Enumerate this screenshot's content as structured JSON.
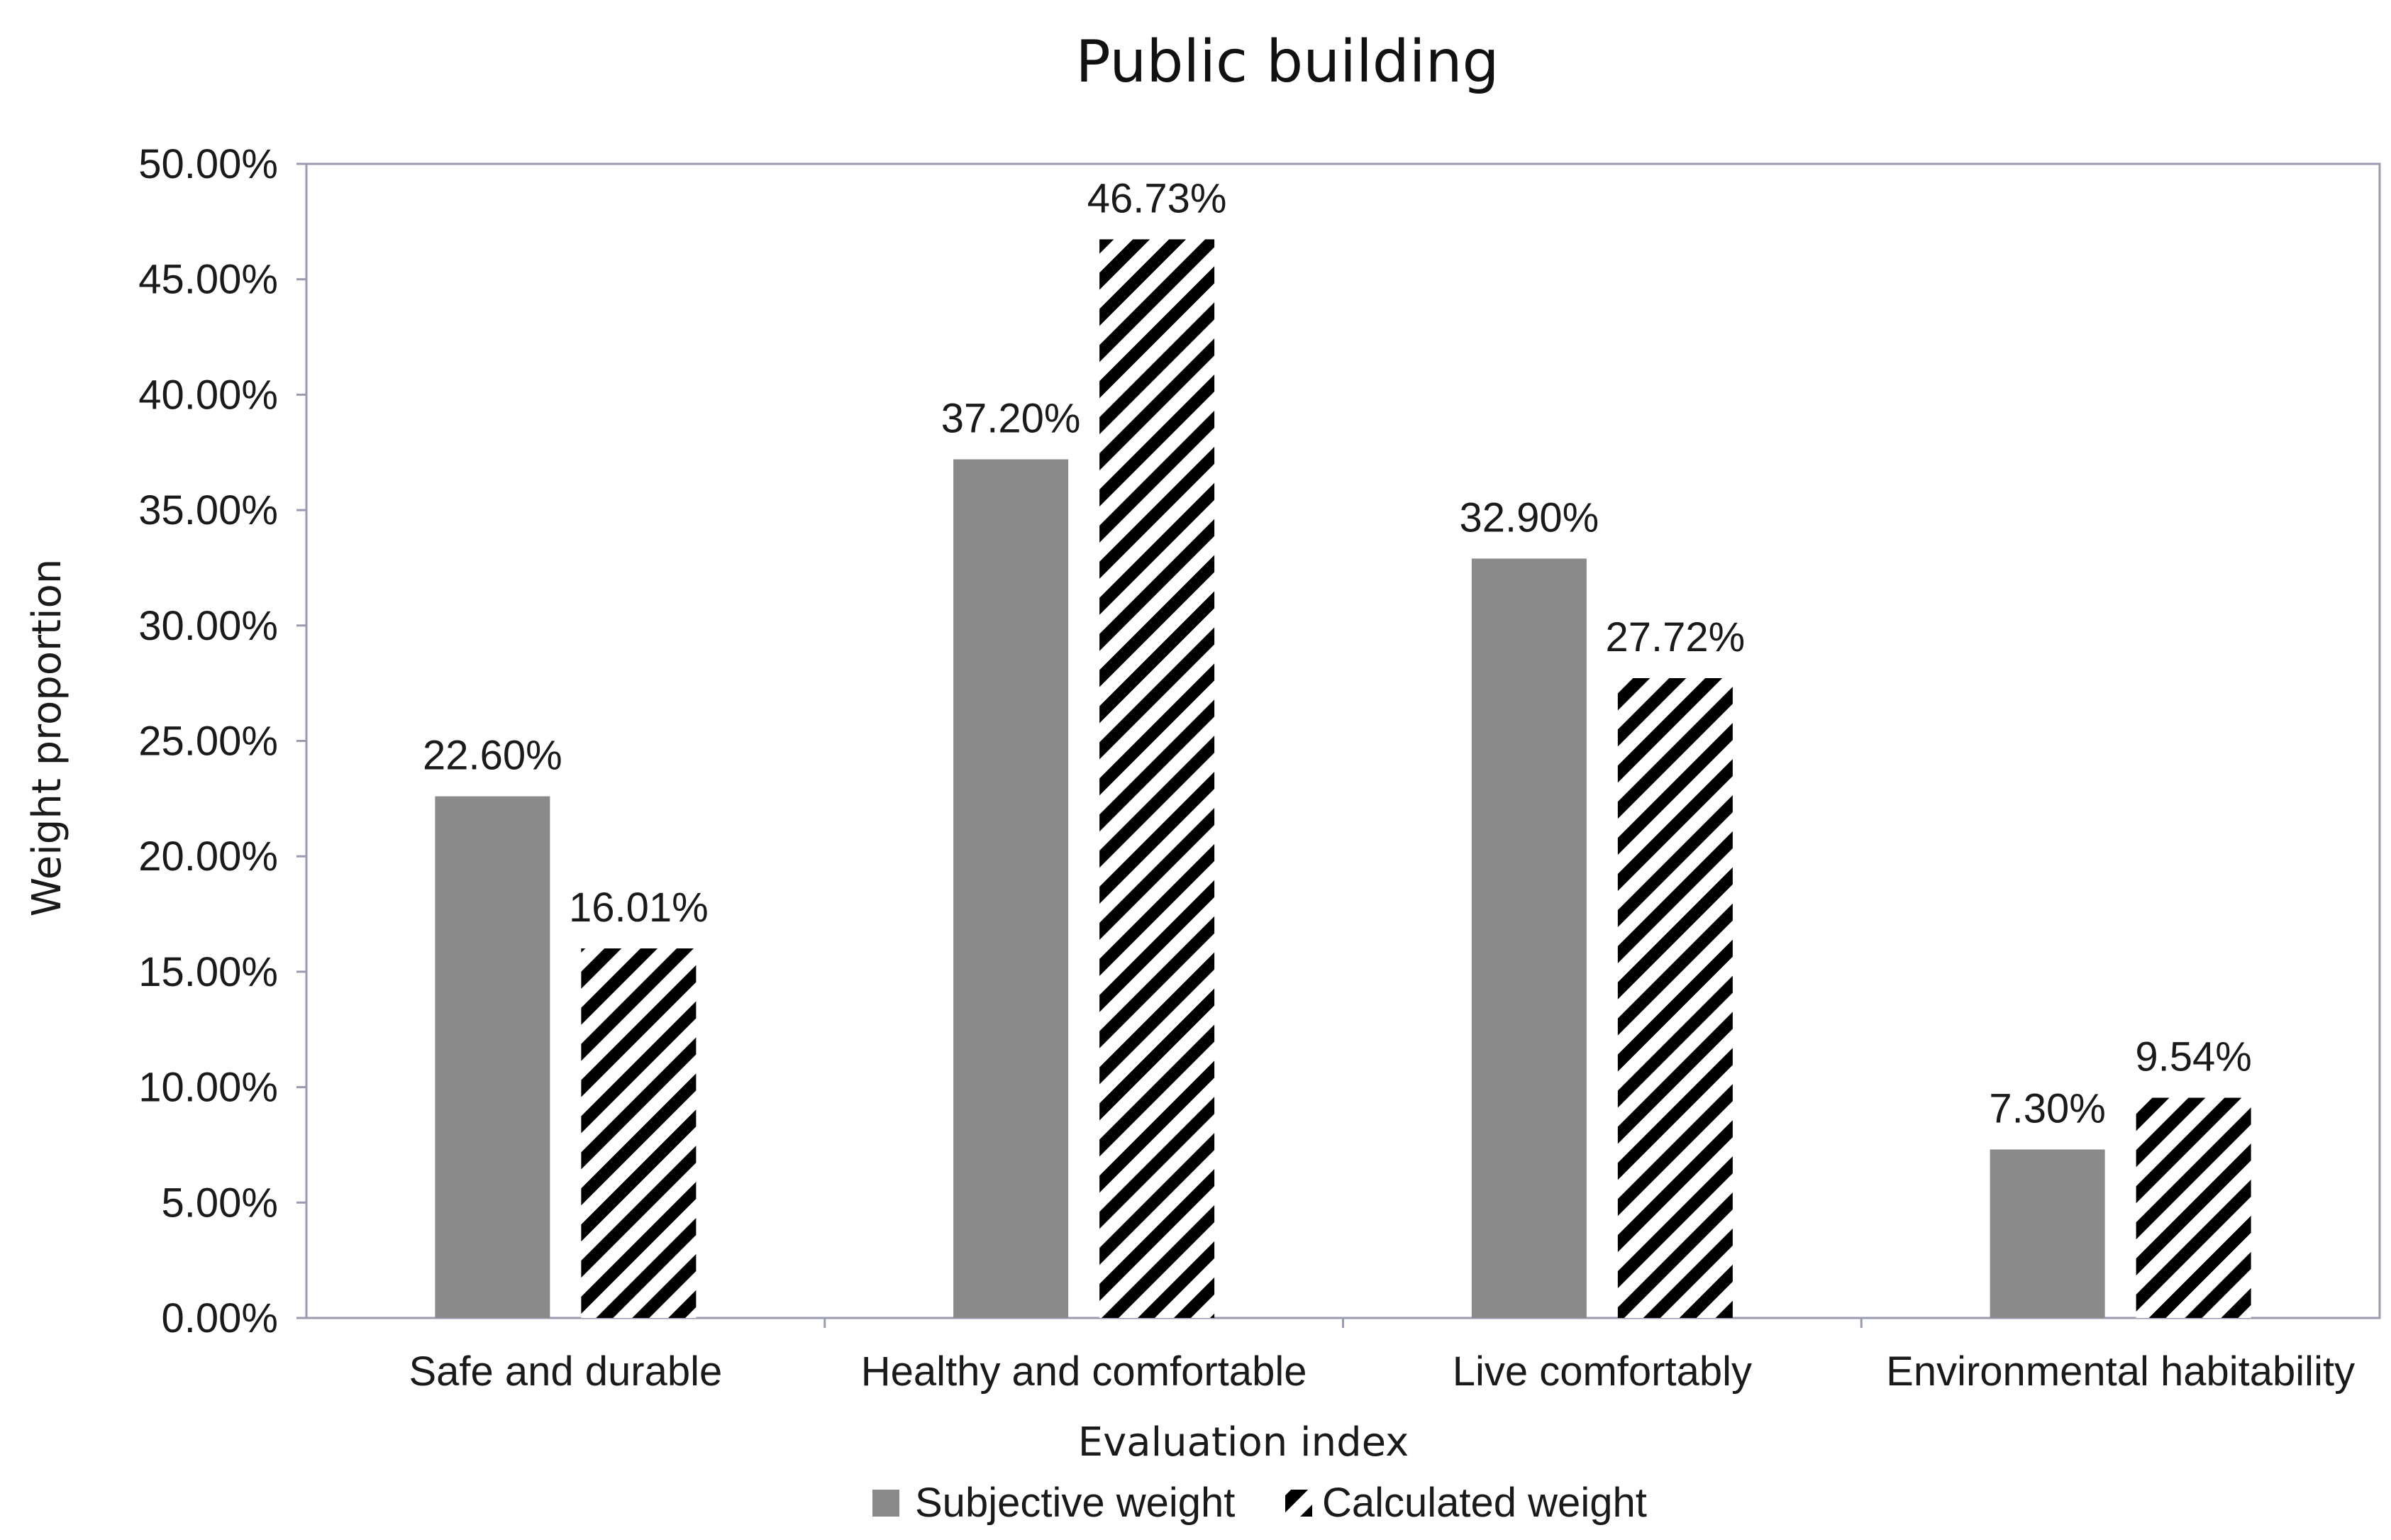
{
  "chart_data": {
    "type": "bar",
    "title": "Public building",
    "xlabel": "Evaluation index",
    "ylabel": "Weight proportion",
    "categories": [
      "Safe and durable",
      "Healthy and comfortable",
      "Live comfortably",
      "Environmental habitability"
    ],
    "series": [
      {
        "name": "Subjective weight",
        "values": [
          22.6,
          37.2,
          32.9,
          7.3
        ],
        "labels": [
          "22.60%",
          "37.20%",
          "32.90%",
          "7.30%"
        ],
        "color": "#8a8a8a",
        "pattern": "solid"
      },
      {
        "name": "Calculated weight",
        "values": [
          16.01,
          46.73,
          27.72,
          9.54
        ],
        "labels": [
          "16.01%",
          "46.73%",
          "27.72%",
          "9.54%"
        ],
        "color": "#000000",
        "pattern": "diagonal-stripes"
      }
    ],
    "ylim": [
      0,
      50
    ],
    "yticks": [
      0,
      5,
      10,
      15,
      20,
      25,
      30,
      35,
      40,
      45,
      50
    ],
    "ytick_labels": [
      "0.00%",
      "5.00%",
      "10.00%",
      "15.00%",
      "20.00%",
      "25.00%",
      "30.00%",
      "35.00%",
      "40.00%",
      "45.00%",
      "50.00%"
    ],
    "grid": false,
    "legend_position": "bottom-center",
    "colors": {
      "axis": "#9a9ab0",
      "text": "#1a1a1a"
    }
  }
}
